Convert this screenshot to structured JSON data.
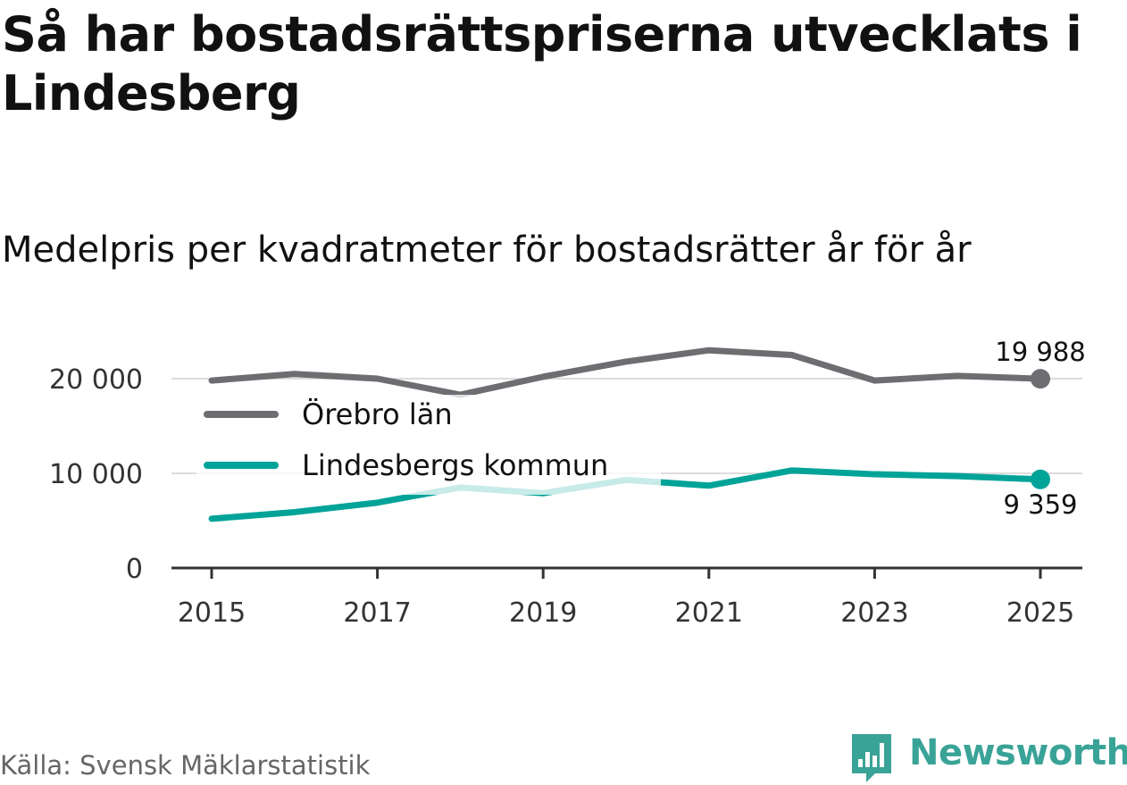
{
  "title": "Så har bostadsrättspriserna utvecklats i Lindesberg",
  "subtitle": "Medelpris per kvadratmeter för bostadsrätter år för år",
  "source": "Källa: Svensk Mäklarstatistik",
  "brand": "Newsworthy",
  "chart_data": {
    "type": "line",
    "x": [
      2015,
      2016,
      2017,
      2018,
      2019,
      2020,
      2021,
      2022,
      2023,
      2024,
      2025
    ],
    "x_tick_labels": [
      "2015",
      "2017",
      "2019",
      "2021",
      "2023",
      "2025"
    ],
    "y_tick_labels": [
      "0",
      "10 000",
      "20 000"
    ],
    "ylim": [
      0,
      24000
    ],
    "series": [
      {
        "name": "Örebro län",
        "color": "#6d6d72",
        "values": [
          19800,
          20500,
          20000,
          18300,
          20200,
          21800,
          23000,
          22500,
          19800,
          20300,
          19988
        ],
        "end_label": "19 988"
      },
      {
        "name": "Lindesbergs kommun",
        "color": "#00a398",
        "values": [
          5200,
          5900,
          6900,
          8500,
          7900,
          9300,
          8700,
          10300,
          9900,
          9700,
          9359
        ],
        "end_label": "9 359"
      }
    ],
    "legend": "top-left inside plot"
  }
}
